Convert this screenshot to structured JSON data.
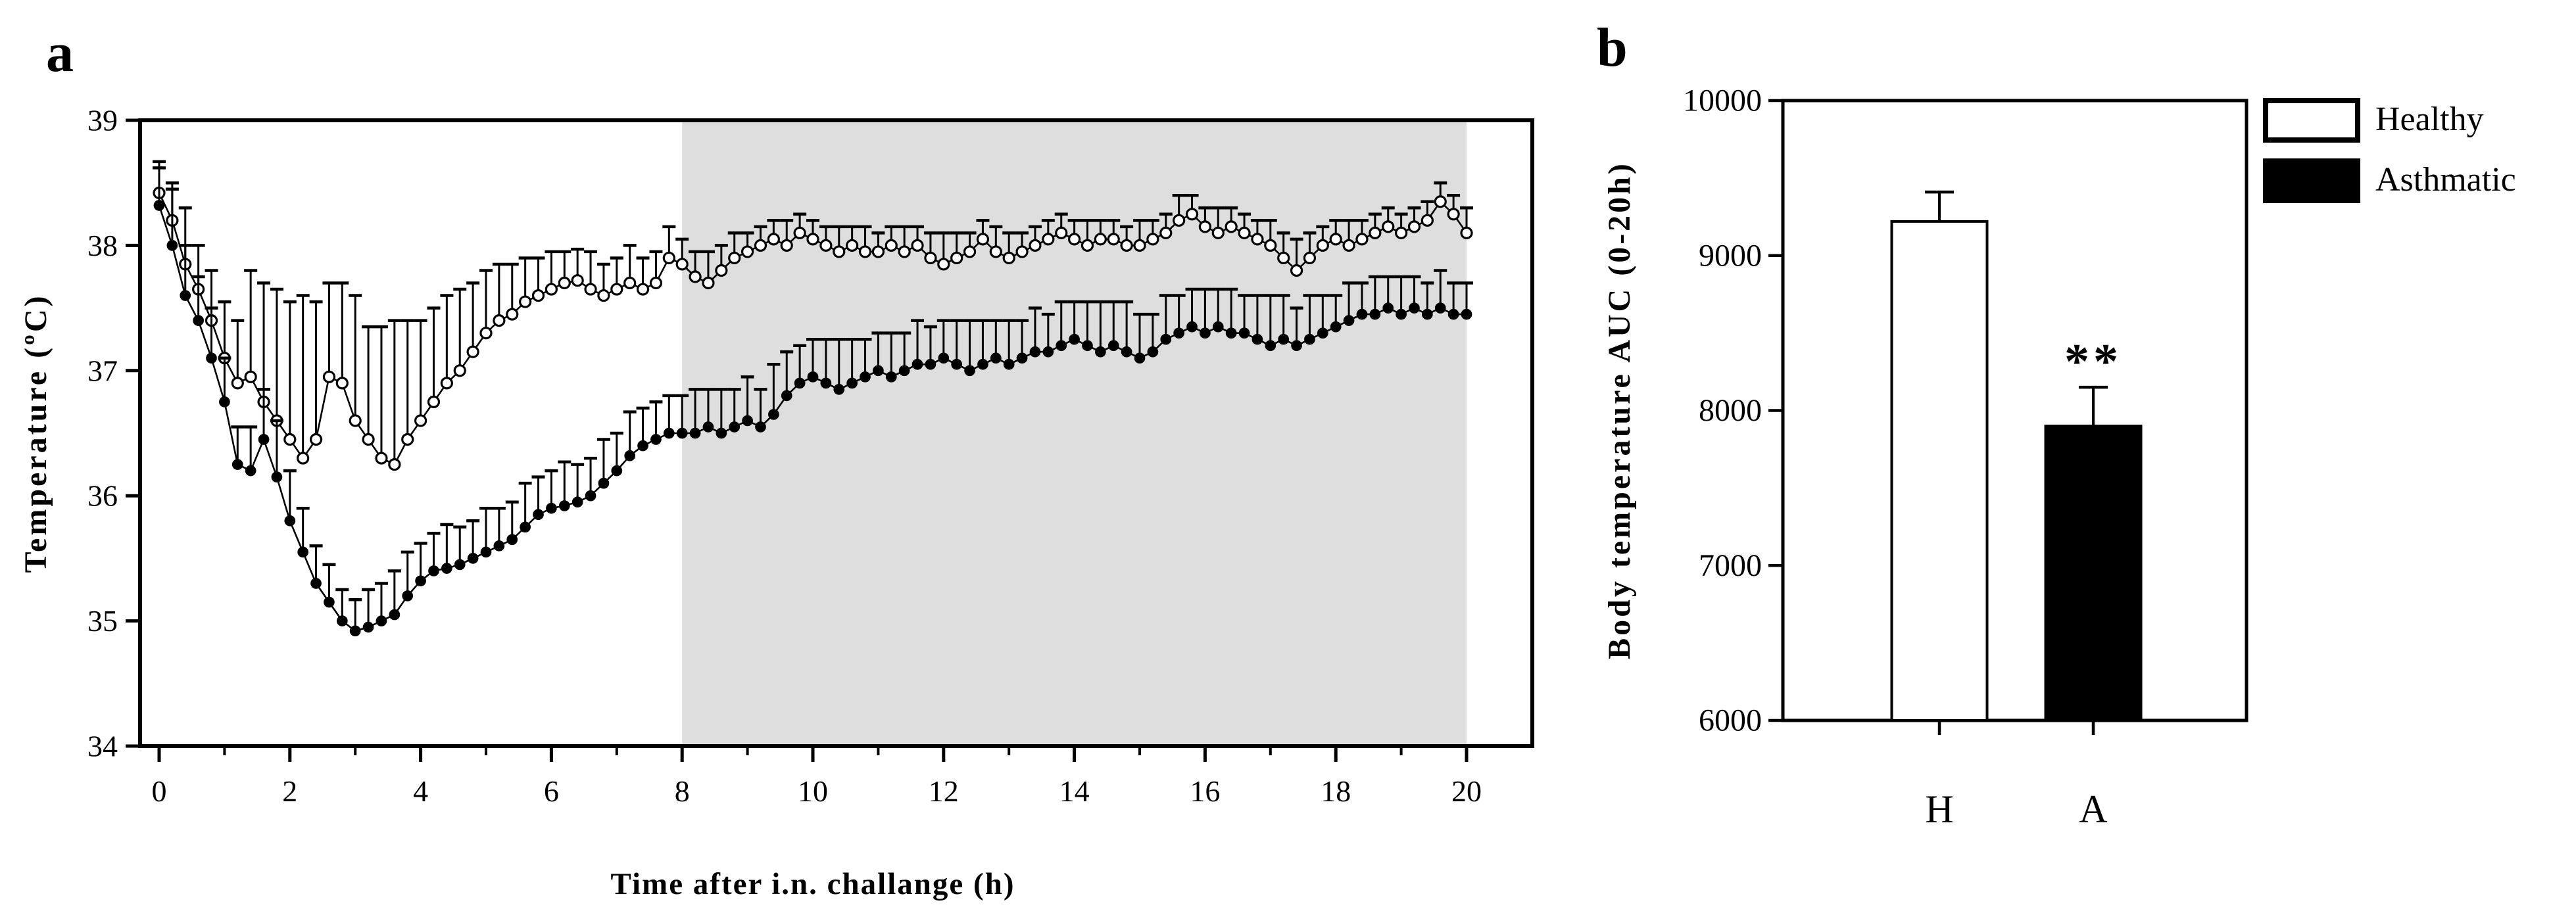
{
  "figure": {
    "background": "#ffffff",
    "panel_a_letter": "a",
    "panel_b_letter": "b"
  },
  "colors": {
    "black": "#000000",
    "white": "#ffffff",
    "shaded_region": "#dedede"
  },
  "chart_data": [
    {
      "type": "line",
      "panel": "a",
      "xlabel": "Time after i.n. challange (h)",
      "ylabel": "Temperature (ºC)",
      "xlim": [
        -0.3,
        21.0
      ],
      "ylim": [
        34,
        39
      ],
      "x_major_ticks": [
        0,
        2,
        4,
        6,
        8,
        10,
        12,
        14,
        16,
        18,
        20
      ],
      "x_minor_ticks": [
        1,
        3,
        5,
        7,
        9,
        11,
        13,
        15,
        17,
        19
      ],
      "y_ticks": [
        34,
        35,
        36,
        37,
        38,
        39
      ],
      "grid": false,
      "shaded_region_h": [
        8,
        20
      ],
      "error_bars": "upward one-sided SD caps",
      "x": {
        "start": 0,
        "step": 0.2,
        "count": 101,
        "unit": "h"
      },
      "series": [
        {
          "name": "Healthy",
          "marker": "open-circle",
          "values": [
            38.42,
            38.2,
            37.85,
            37.65,
            37.4,
            37.1,
            36.9,
            36.95,
            36.75,
            36.6,
            36.45,
            36.3,
            36.45,
            36.95,
            36.9,
            36.6,
            36.45,
            36.3,
            36.25,
            36.45,
            36.6,
            36.75,
            36.9,
            37.0,
            37.15,
            37.3,
            37.4,
            37.45,
            37.55,
            37.6,
            37.65,
            37.7,
            37.72,
            37.65,
            37.6,
            37.65,
            37.7,
            37.65,
            37.7,
            37.9,
            37.85,
            37.75,
            37.7,
            37.8,
            37.9,
            37.95,
            38.0,
            38.05,
            38.0,
            38.1,
            38.05,
            38.0,
            37.95,
            38.0,
            37.95,
            37.95,
            38.0,
            37.95,
            38.0,
            37.9,
            37.85,
            37.9,
            37.95,
            38.05,
            37.95,
            37.9,
            37.95,
            38.0,
            38.05,
            38.1,
            38.05,
            38.0,
            38.05,
            38.05,
            38.0,
            38.0,
            38.05,
            38.1,
            38.2,
            38.25,
            38.15,
            38.1,
            38.15,
            38.1,
            38.05,
            38.0,
            37.9,
            37.8,
            37.9,
            38.0,
            38.05,
            38.0,
            38.05,
            38.1,
            38.15,
            38.1,
            38.15,
            38.2,
            38.35,
            38.25,
            38.1
          ],
          "errors_up": [
            0.25,
            0.3,
            0.45,
            0.35,
            0.4,
            0.45,
            0.5,
            0.85,
            0.95,
            1.05,
            1.1,
            1.3,
            1.1,
            0.75,
            0.8,
            1.0,
            0.9,
            1.05,
            1.15,
            0.95,
            0.8,
            0.75,
            0.7,
            0.65,
            0.55,
            0.5,
            0.45,
            0.4,
            0.35,
            0.3,
            0.3,
            0.25,
            0.25,
            0.3,
            0.25,
            0.25,
            0.3,
            0.25,
            0.25,
            0.25,
            0.2,
            0.2,
            0.25,
            0.2,
            0.2,
            0.15,
            0.15,
            0.15,
            0.2,
            0.15,
            0.15,
            0.15,
            0.2,
            0.15,
            0.2,
            0.15,
            0.15,
            0.2,
            0.15,
            0.2,
            0.25,
            0.2,
            0.15,
            0.15,
            0.2,
            0.2,
            0.15,
            0.15,
            0.15,
            0.15,
            0.15,
            0.2,
            0.15,
            0.15,
            0.15,
            0.2,
            0.15,
            0.15,
            0.2,
            0.15,
            0.15,
            0.2,
            0.15,
            0.15,
            0.15,
            0.2,
            0.2,
            0.25,
            0.2,
            0.15,
            0.15,
            0.2,
            0.15,
            0.15,
            0.15,
            0.15,
            0.15,
            0.15,
            0.15,
            0.15,
            0.2
          ]
        },
        {
          "name": "Asthmatic",
          "marker": "filled-circle",
          "values": [
            38.32,
            38.0,
            37.6,
            37.4,
            37.1,
            36.75,
            36.25,
            36.2,
            36.45,
            36.15,
            35.8,
            35.55,
            35.3,
            35.15,
            35.0,
            34.92,
            34.95,
            35.0,
            35.05,
            35.2,
            35.32,
            35.4,
            35.42,
            35.45,
            35.5,
            35.55,
            35.6,
            35.65,
            35.75,
            35.85,
            35.9,
            35.92,
            35.95,
            36.0,
            36.1,
            36.2,
            36.32,
            36.4,
            36.45,
            36.5,
            36.5,
            36.5,
            36.55,
            36.5,
            36.55,
            36.6,
            36.55,
            36.65,
            36.8,
            36.9,
            36.95,
            36.9,
            36.85,
            36.9,
            36.95,
            37.0,
            36.95,
            37.0,
            37.05,
            37.05,
            37.1,
            37.05,
            37.0,
            37.05,
            37.1,
            37.05,
            37.1,
            37.15,
            37.15,
            37.2,
            37.25,
            37.2,
            37.15,
            37.2,
            37.15,
            37.1,
            37.15,
            37.25,
            37.3,
            37.35,
            37.3,
            37.35,
            37.3,
            37.3,
            37.25,
            37.2,
            37.25,
            37.2,
            37.25,
            37.3,
            37.35,
            37.4,
            37.45,
            37.45,
            37.5,
            37.45,
            37.5,
            37.45,
            37.5,
            37.45,
            37.45
          ],
          "errors_up": [
            0.3,
            0.45,
            0.4,
            0.35,
            0.4,
            0.35,
            0.3,
            0.35,
            0.4,
            0.45,
            0.4,
            0.35,
            0.3,
            0.3,
            0.25,
            0.25,
            0.3,
            0.3,
            0.35,
            0.35,
            0.3,
            0.3,
            0.35,
            0.3,
            0.3,
            0.35,
            0.3,
            0.3,
            0.35,
            0.3,
            0.3,
            0.35,
            0.3,
            0.3,
            0.35,
            0.3,
            0.35,
            0.3,
            0.3,
            0.3,
            0.3,
            0.35,
            0.3,
            0.35,
            0.3,
            0.35,
            0.3,
            0.4,
            0.35,
            0.3,
            0.3,
            0.35,
            0.4,
            0.35,
            0.3,
            0.3,
            0.35,
            0.3,
            0.35,
            0.3,
            0.3,
            0.35,
            0.4,
            0.35,
            0.3,
            0.35,
            0.3,
            0.35,
            0.3,
            0.35,
            0.3,
            0.35,
            0.4,
            0.35,
            0.4,
            0.35,
            0.3,
            0.35,
            0.3,
            0.3,
            0.35,
            0.3,
            0.35,
            0.3,
            0.35,
            0.4,
            0.35,
            0.3,
            0.35,
            0.3,
            0.25,
            0.3,
            0.25,
            0.3,
            0.25,
            0.3,
            0.25,
            0.25,
            0.3,
            0.25,
            0.25
          ]
        }
      ]
    },
    {
      "type": "bar",
      "panel": "b",
      "ylabel": "Body temperature AUC (0-20h)",
      "ylim": [
        6000,
        10000
      ],
      "y_ticks": [
        6000,
        7000,
        8000,
        9000,
        10000
      ],
      "grid": false,
      "categories": [
        "H",
        "A"
      ],
      "values": [
        9220,
        7900
      ],
      "errors_up": [
        190,
        250
      ],
      "bar_fills": [
        "#ffffff",
        "#000000"
      ],
      "significance": {
        "bar": "A",
        "label": "**"
      },
      "legend": {
        "position": "top-right-outside",
        "entries": [
          {
            "label": "Healthy",
            "fill": "#ffffff"
          },
          {
            "label": "Asthmatic",
            "fill": "#000000"
          }
        ]
      }
    }
  ]
}
